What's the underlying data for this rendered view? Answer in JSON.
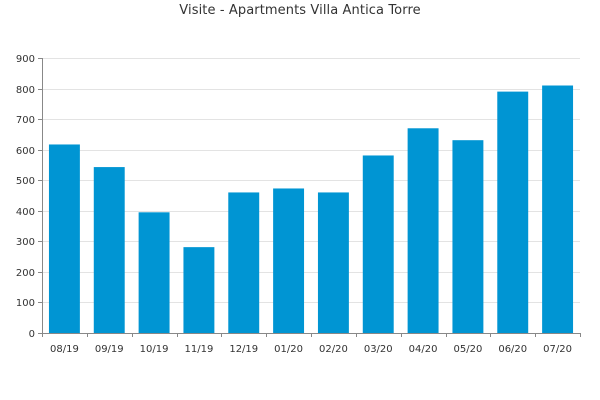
{
  "chart_data": {
    "type": "bar",
    "title": "Visite - Apartments Villa Antica Torre",
    "xlabel": "",
    "ylabel": "",
    "categories": [
      "08/19",
      "09/19",
      "10/19",
      "11/19",
      "12/19",
      "01/20",
      "02/20",
      "03/20",
      "04/20",
      "05/20",
      "06/20",
      "07/20"
    ],
    "values": [
      617,
      543,
      395,
      281,
      460,
      473,
      460,
      581,
      670,
      631,
      790,
      810
    ],
    "ylim": [
      0,
      900
    ],
    "yticks": [
      0,
      100,
      200,
      300,
      400,
      500,
      600,
      700,
      800,
      900
    ],
    "grid": true,
    "legend": "none",
    "colors": {
      "bar": "#0095d3",
      "grid": "#e3e3e3",
      "axis": "#888888",
      "text": "#333333"
    }
  }
}
